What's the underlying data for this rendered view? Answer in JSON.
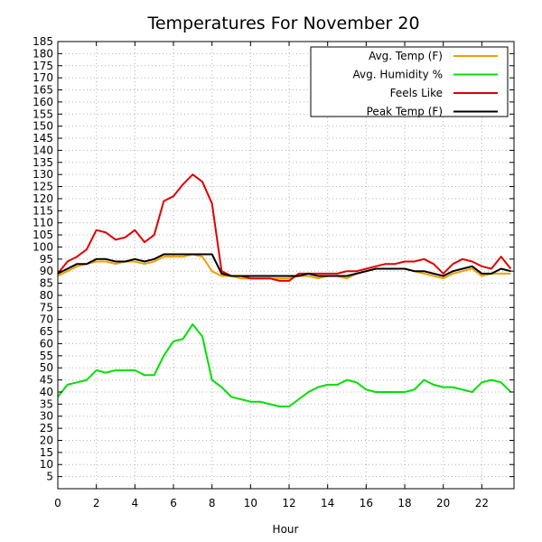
{
  "chart_data": {
    "type": "line",
    "title": "Temperatures For November 20",
    "xlabel": "Hour",
    "ylabel": "",
    "xlim": [
      0,
      23.67
    ],
    "ylim": [
      0,
      185
    ],
    "x_ticks": [
      0,
      2,
      4,
      6,
      8,
      10,
      12,
      14,
      16,
      18,
      20,
      22
    ],
    "y_ticks": [
      5,
      10,
      15,
      20,
      25,
      30,
      35,
      40,
      45,
      50,
      55,
      60,
      65,
      70,
      75,
      80,
      85,
      90,
      95,
      100,
      105,
      110,
      115,
      120,
      125,
      130,
      135,
      140,
      145,
      150,
      155,
      160,
      165,
      170,
      175,
      180,
      185
    ],
    "grid": true,
    "legend_position": "top-right",
    "x": [
      0,
      0.5,
      1,
      1.5,
      2,
      2.5,
      3,
      3.5,
      4,
      4.5,
      5,
      5.5,
      6,
      6.5,
      7,
      7.5,
      8,
      8.5,
      9,
      9.5,
      10,
      10.5,
      11,
      11.5,
      12,
      12.5,
      13,
      13.5,
      14,
      14.5,
      15,
      15.5,
      16,
      16.5,
      17,
      17.5,
      18,
      18.5,
      19,
      19.5,
      20,
      20.5,
      21,
      21.5,
      22,
      22.5,
      23,
      23.5
    ],
    "series": [
      {
        "name": "Avg. Temp (F)",
        "color": "#f0a000",
        "values": [
          88,
          90,
          92,
          93,
          94,
          94,
          93,
          94,
          94,
          93,
          94,
          96,
          96,
          96,
          97,
          96,
          90,
          88,
          88,
          87,
          87,
          87,
          87,
          87,
          87,
          88,
          88,
          87,
          88,
          88,
          87,
          89,
          90,
          91,
          91,
          91,
          91,
          90,
          89,
          88,
          87,
          89,
          90,
          91,
          88,
          89,
          89,
          89
        ]
      },
      {
        "name": "Avg. Humidity %",
        "color": "#00e000",
        "values": [
          38,
          43,
          44,
          45,
          49,
          48,
          49,
          49,
          49,
          47,
          47,
          55,
          61,
          62,
          68,
          63,
          45,
          42,
          38,
          37,
          36,
          36,
          35,
          34,
          34,
          37,
          40,
          42,
          43,
          43,
          45,
          44,
          41,
          40,
          40,
          40,
          40,
          41,
          45,
          43,
          42,
          42,
          41,
          40,
          44,
          45,
          44,
          40
        ]
      },
      {
        "name": "Feels Like",
        "color": "#e00000",
        "values": [
          89,
          94,
          96,
          99,
          107,
          106,
          103,
          104,
          107,
          102,
          105,
          119,
          121,
          126,
          130,
          127,
          118,
          90,
          88,
          88,
          87,
          87,
          87,
          86,
          86,
          89,
          89,
          89,
          89,
          89,
          90,
          90,
          91,
          92,
          93,
          93,
          94,
          94,
          95,
          93,
          89,
          93,
          95,
          94,
          92,
          91,
          96,
          91
        ]
      },
      {
        "name": "Peak Temp (F)",
        "color": "#000000",
        "values": [
          89,
          91,
          93,
          93,
          95,
          95,
          94,
          94,
          95,
          94,
          95,
          97,
          97,
          97,
          97,
          97,
          97,
          89,
          88,
          88,
          88,
          88,
          88,
          88,
          88,
          88,
          89,
          88,
          88,
          88,
          88,
          89,
          90,
          91,
          91,
          91,
          91,
          90,
          90,
          89,
          88,
          90,
          91,
          92,
          89,
          89,
          91,
          90
        ]
      }
    ]
  }
}
